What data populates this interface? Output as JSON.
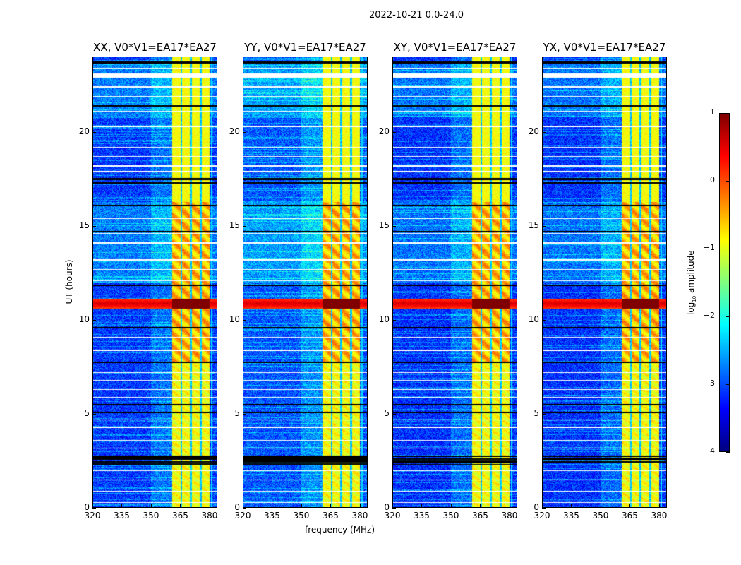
{
  "suptitle": "2022-10-21 0.0-24.0",
  "chart_data": {
    "type": "heatmap",
    "panels": [
      {
        "title": "XX, V0*V1=EA17*EA27"
      },
      {
        "title": "YY, V0*V1=EA17*EA27"
      },
      {
        "title": "XY, V0*V1=EA17*EA27"
      },
      {
        "title": "YX, V0*V1=EA17*EA27"
      }
    ],
    "xlabel": "frequency (MHz)",
    "ylabel": "UT (hours)",
    "xlim": [
      320,
      384
    ],
    "ylim": [
      0,
      24
    ],
    "xticks": [
      320,
      335,
      350,
      365,
      380
    ],
    "xtick_labels": [
      "320",
      "335",
      "350",
      "365",
      "380"
    ],
    "yticks": [
      0,
      5,
      10,
      15,
      20
    ],
    "ytick_labels": [
      "0",
      "5",
      "10",
      "15",
      "20"
    ],
    "colormap": "jet",
    "colorbar": {
      "label_prefix": "log",
      "label_sub": "10",
      "label_suffix": " amplitude",
      "range": [
        -4,
        1
      ],
      "ticks": [
        1,
        0,
        -1,
        -2,
        -3,
        -4
      ],
      "tick_labels": [
        "1",
        "0",
        "−1",
        "−2",
        "−3",
        "−4"
      ]
    },
    "features": {
      "background_level": -3.1,
      "rfi_band_mhz": [
        360.5,
        380
      ],
      "rfi_band_level": -0.9,
      "band_gaps_mhz": [
        365.3,
        370.3,
        375.3
      ],
      "strong_rfi_hours": [
        10.6,
        11.15
      ],
      "strong_rfi_level": 0.6,
      "flagged_white_hours": [
        0.3,
        0.9,
        1.5,
        2.0,
        3.2,
        3.6,
        4.3,
        4.7,
        5.9,
        6.3,
        6.8,
        7.2,
        8.4,
        9.1,
        12.1,
        12.7,
        13.2,
        14.1,
        14.6,
        15.4,
        17.9,
        18.2,
        18.7,
        19.2,
        20.3,
        21.1,
        21.9,
        22.4,
        23.0,
        23.4
      ],
      "flagged_black_hours": [
        2.45,
        2.6,
        2.75,
        5.1,
        5.5,
        7.75,
        9.6,
        11.85,
        14.7,
        16.1,
        17.3,
        17.5,
        21.4,
        23.7
      ]
    }
  }
}
